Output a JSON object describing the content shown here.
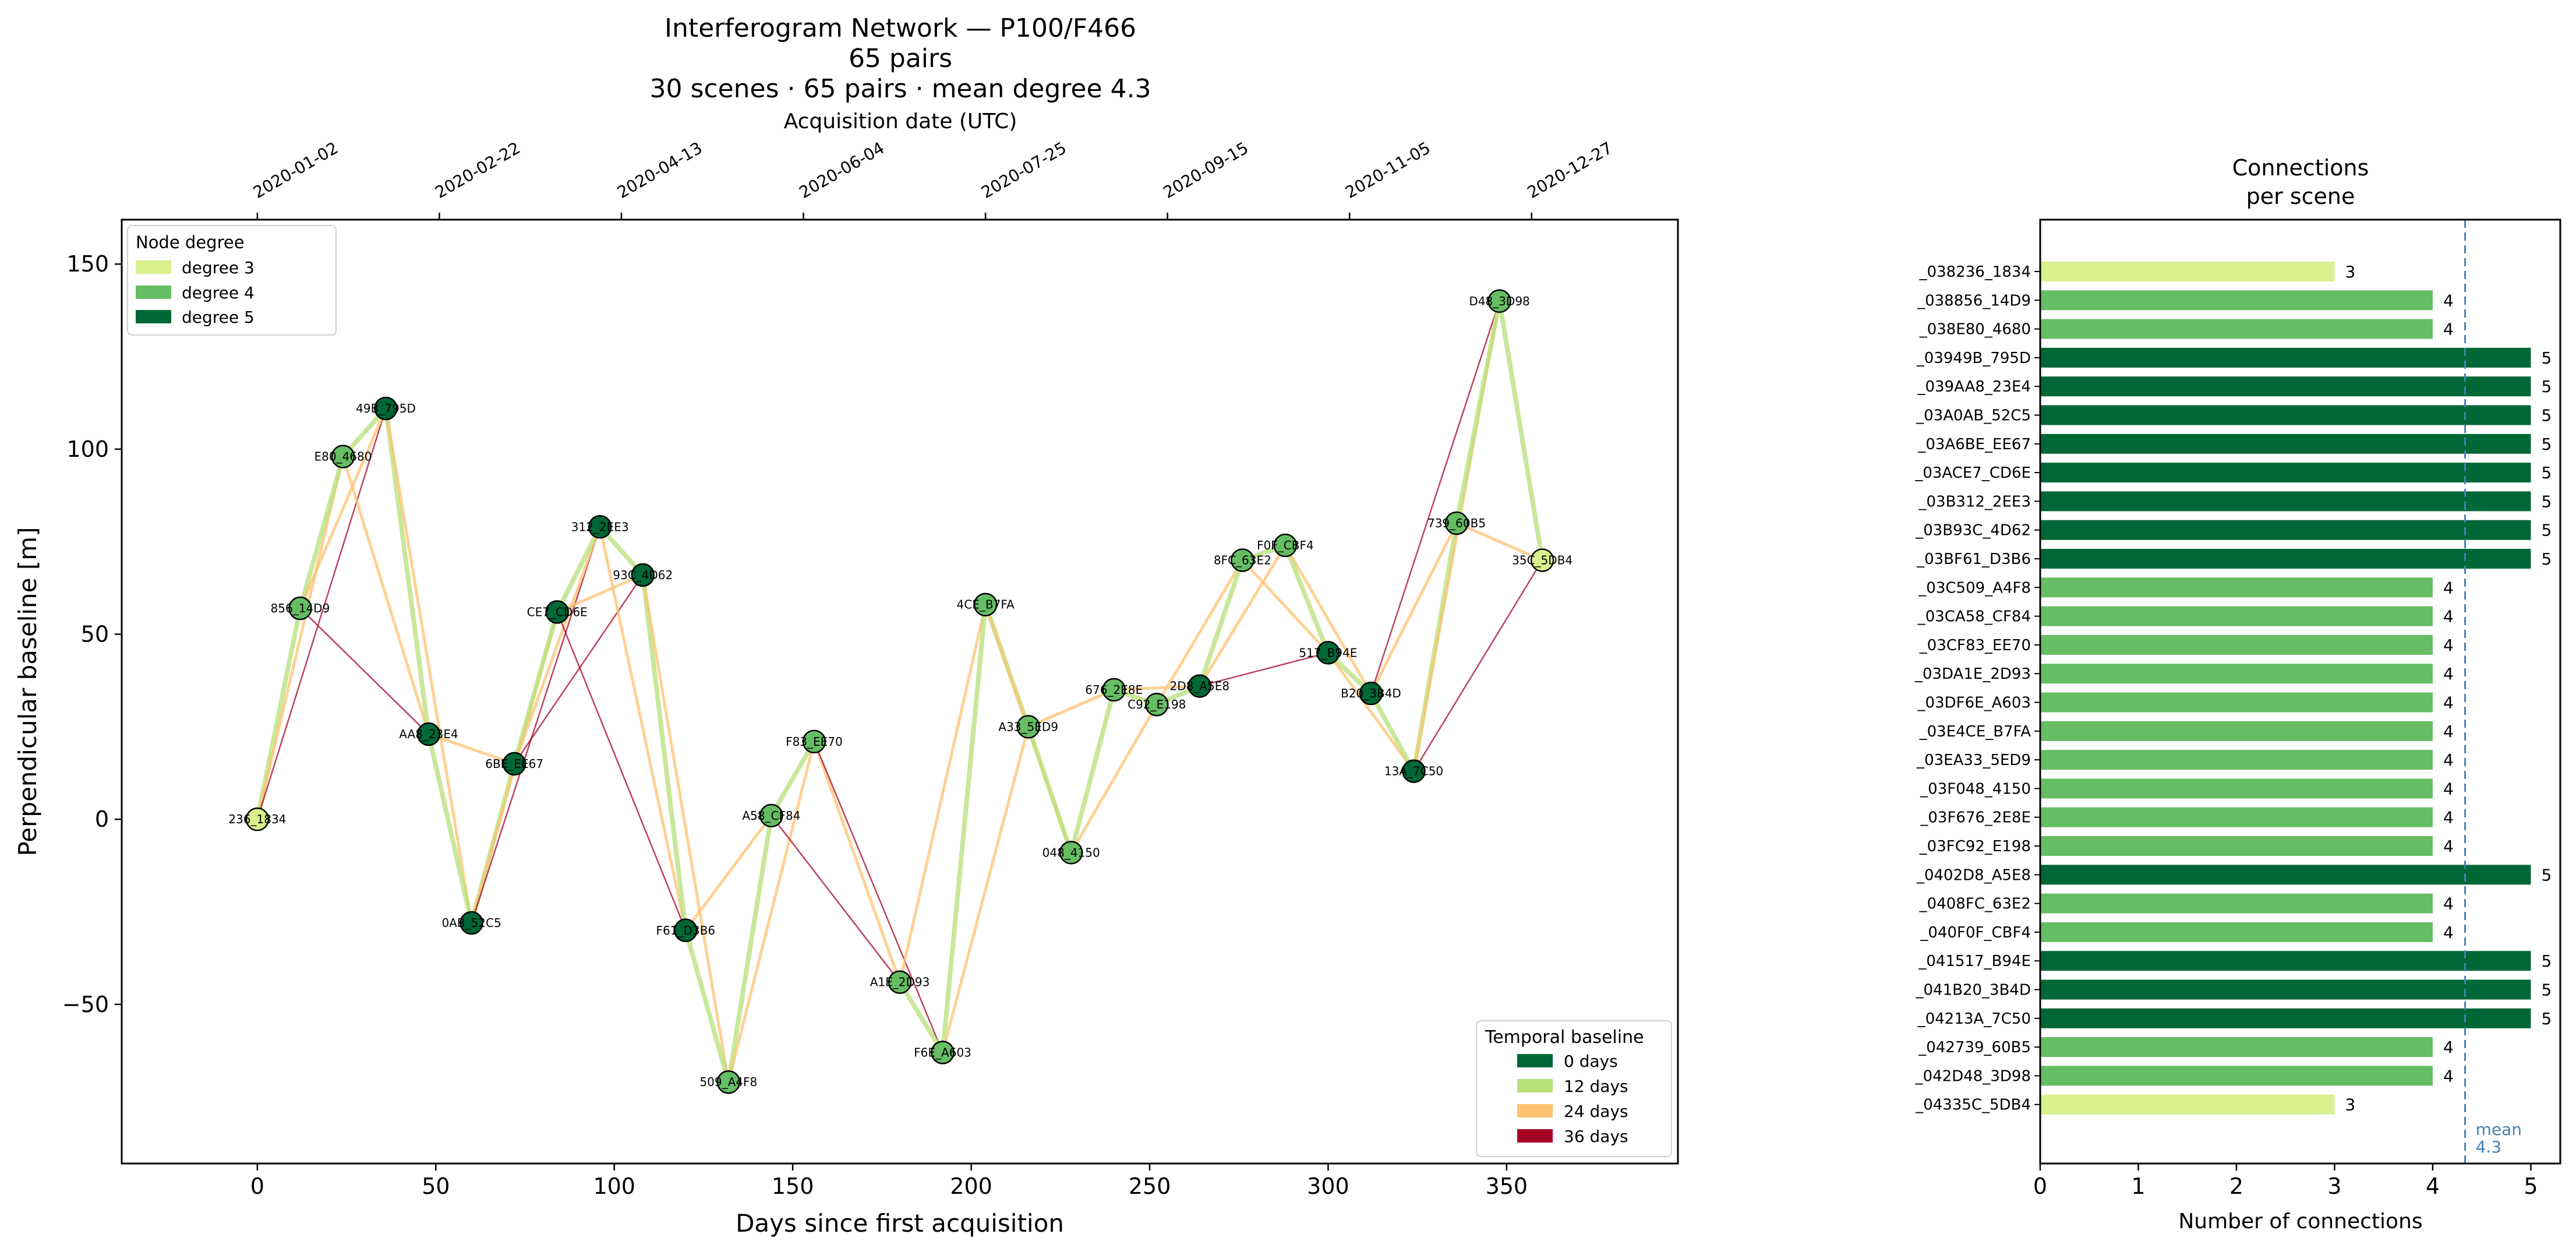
{
  "figure": {
    "title_lines": [
      "Interferogram Network — P100/F466",
      "65 pairs",
      "30 scenes · 65 pairs · mean degree 4.3"
    ]
  },
  "chart_data": [
    {
      "type": "scatter",
      "title": "Interferogram Network — P100/F466",
      "xlabel": "Days since first acquisition",
      "ylabel": "Perpendicular baseline [m]",
      "top_axis_label": "Acquisition date (UTC)",
      "xlim": [
        -38,
        398
      ],
      "ylim": [
        -93,
        162
      ],
      "xticks": [
        0,
        50,
        100,
        150,
        200,
        250,
        300,
        350
      ],
      "xtick_labels": [
        "0",
        "50",
        "100",
        "150",
        "200",
        "250",
        "300",
        "350"
      ],
      "yticks": [
        -50,
        0,
        50,
        100,
        150
      ],
      "ytick_labels": [
        "−50",
        "0",
        "50",
        "100",
        "150"
      ],
      "top_ticks": [
        0,
        51,
        102,
        153,
        204,
        255,
        306,
        357
      ],
      "top_tick_labels": [
        "2020-01-02",
        "2020-02-22",
        "2020-04-13",
        "2020-06-04",
        "2020-07-25",
        "2020-09-15",
        "2020-11-05",
        "2020-12-27"
      ],
      "node_legend": {
        "title": "Node degree",
        "items": [
          {
            "label": "degree 3",
            "color": "#d9f08d"
          },
          {
            "label": "degree 4",
            "color": "#66bd63"
          },
          {
            "label": "degree 5",
            "color": "#006837"
          }
        ]
      },
      "edge_legend": {
        "title": "Temporal baseline",
        "items": [
          {
            "label": "0 days",
            "color": "#006837"
          },
          {
            "label": "12 days",
            "color": "#b5e07a"
          },
          {
            "label": "24 days",
            "color": "#fdc170"
          },
          {
            "label": "36 days",
            "color": "#a50026"
          }
        ]
      },
      "nodes": [
        {
          "label": "236_1834",
          "x": 0,
          "y": 0,
          "degree": 3
        },
        {
          "label": "856_14D9",
          "x": 12,
          "y": 57,
          "degree": 4
        },
        {
          "label": "E80_4680",
          "x": 24,
          "y": 98,
          "degree": 4
        },
        {
          "label": "49B_795D",
          "x": 36,
          "y": 111,
          "degree": 5
        },
        {
          "label": "AA8_23E4",
          "x": 48,
          "y": 23,
          "degree": 5
        },
        {
          "label": "0AB_52C5",
          "x": 60,
          "y": -28,
          "degree": 5
        },
        {
          "label": "6BE_EE67",
          "x": 72,
          "y": 15,
          "degree": 5
        },
        {
          "label": "CE7_CD6E",
          "x": 84,
          "y": 56,
          "degree": 5
        },
        {
          "label": "312_2EE3",
          "x": 96,
          "y": 79,
          "degree": 5
        },
        {
          "label": "93C_4D62",
          "x": 108,
          "y": 66,
          "degree": 5
        },
        {
          "label": "F61_D3B6",
          "x": 120,
          "y": -30,
          "degree": 5
        },
        {
          "label": "509_A4F8",
          "x": 132,
          "y": -71,
          "degree": 4
        },
        {
          "label": "A58_CF84",
          "x": 144,
          "y": 1,
          "degree": 4
        },
        {
          "label": "F83_EE70",
          "x": 156,
          "y": 21,
          "degree": 4
        },
        {
          "label": "A1E_2D93",
          "x": 180,
          "y": -44,
          "degree": 4
        },
        {
          "label": "F6E_A603",
          "x": 192,
          "y": -63,
          "degree": 4
        },
        {
          "label": "4CE_B7FA",
          "x": 204,
          "y": 58,
          "degree": 4
        },
        {
          "label": "A33_5ED9",
          "x": 216,
          "y": 25,
          "degree": 4
        },
        {
          "label": "048_4150",
          "x": 228,
          "y": -9,
          "degree": 4
        },
        {
          "label": "676_2E8E",
          "x": 240,
          "y": 35,
          "degree": 4
        },
        {
          "label": "C92_E198",
          "x": 252,
          "y": 31,
          "degree": 4
        },
        {
          "label": "2D8_A5E8",
          "x": 264,
          "y": 36,
          "degree": 5
        },
        {
          "label": "8FC_63E2",
          "x": 276,
          "y": 70,
          "degree": 4
        },
        {
          "label": "F0F_CBF4",
          "x": 288,
          "y": 74,
          "degree": 4
        },
        {
          "label": "517_B94E",
          "x": 300,
          "y": 45,
          "degree": 5
        },
        {
          "label": "B20_3B4D",
          "x": 312,
          "y": 34,
          "degree": 5
        },
        {
          "label": "13A_7C50",
          "x": 324,
          "y": 13,
          "degree": 5
        },
        {
          "label": "739_60B5",
          "x": 336,
          "y": 80,
          "degree": 4
        },
        {
          "label": "D48_3D98",
          "x": 348,
          "y": 140,
          "degree": 4
        },
        {
          "label": "35C_5DB4",
          "x": 360,
          "y": 70,
          "degree": 3
        }
      ],
      "edges": [
        [
          0,
          1,
          12
        ],
        [
          0,
          2,
          24
        ],
        [
          0,
          3,
          36
        ],
        [
          1,
          2,
          12
        ],
        [
          1,
          3,
          24
        ],
        [
          1,
          4,
          36
        ],
        [
          2,
          3,
          12
        ],
        [
          2,
          4,
          24
        ],
        [
          3,
          4,
          12
        ],
        [
          3,
          5,
          24
        ],
        [
          4,
          5,
          12
        ],
        [
          4,
          6,
          24
        ],
        [
          5,
          6,
          12
        ],
        [
          5,
          7,
          24
        ],
        [
          5,
          8,
          36
        ],
        [
          6,
          7,
          12
        ],
        [
          6,
          8,
          24
        ],
        [
          6,
          9,
          36
        ],
        [
          7,
          8,
          12
        ],
        [
          7,
          9,
          24
        ],
        [
          7,
          10,
          36
        ],
        [
          8,
          9,
          12
        ],
        [
          8,
          10,
          24
        ],
        [
          9,
          10,
          12
        ],
        [
          9,
          11,
          24
        ],
        [
          10,
          11,
          12
        ],
        [
          10,
          12,
          24
        ],
        [
          11,
          12,
          12
        ],
        [
          11,
          13,
          24
        ],
        [
          12,
          13,
          12
        ],
        [
          12,
          14,
          36
        ],
        [
          13,
          14,
          24
        ],
        [
          13,
          15,
          36
        ],
        [
          14,
          15,
          12
        ],
        [
          14,
          16,
          24
        ],
        [
          15,
          16,
          12
        ],
        [
          15,
          17,
          24
        ],
        [
          16,
          17,
          12
        ],
        [
          16,
          18,
          24
        ],
        [
          17,
          18,
          12
        ],
        [
          17,
          19,
          24
        ],
        [
          18,
          19,
          12
        ],
        [
          18,
          20,
          24
        ],
        [
          19,
          20,
          12
        ],
        [
          19,
          21,
          24
        ],
        [
          20,
          21,
          12
        ],
        [
          20,
          22,
          24
        ],
        [
          21,
          22,
          12
        ],
        [
          21,
          23,
          24
        ],
        [
          21,
          24,
          36
        ],
        [
          22,
          23,
          12
        ],
        [
          22,
          24,
          24
        ],
        [
          23,
          24,
          12
        ],
        [
          23,
          25,
          24
        ],
        [
          24,
          25,
          12
        ],
        [
          24,
          26,
          24
        ],
        [
          25,
          26,
          12
        ],
        [
          25,
          27,
          24
        ],
        [
          25,
          28,
          36
        ],
        [
          26,
          27,
          12
        ],
        [
          26,
          28,
          24
        ],
        [
          26,
          29,
          36
        ],
        [
          27,
          28,
          12
        ],
        [
          27,
          29,
          24
        ],
        [
          28,
          29,
          12
        ]
      ]
    },
    {
      "type": "bar",
      "orientation": "horizontal",
      "title": "Connections per scene",
      "title_lines": [
        "Connections",
        "per scene"
      ],
      "xlabel": "Number of connections",
      "ylabel": "",
      "xlim": [
        0,
        5.3
      ],
      "xticks": [
        0,
        1,
        2,
        3,
        4,
        5
      ],
      "mean": 4.33,
      "mean_label_lines": [
        "mean",
        "4.3"
      ],
      "categories": [
        "_038236_1834",
        "_038856_14D9",
        "_038E80_4680",
        "_03949B_795D",
        "_039AA8_23E4",
        "_03A0AB_52C5",
        "_03A6BE_EE67",
        "_03ACE7_CD6E",
        "_03B312_2EE3",
        "_03B93C_4D62",
        "_03BF61_D3B6",
        "_03C509_A4F8",
        "_03CA58_CF84",
        "_03CF83_EE70",
        "_03DA1E_2D93",
        "_03DF6E_A603",
        "_03E4CE_B7FA",
        "_03EA33_5ED9",
        "_03F048_4150",
        "_03F676_2E8E",
        "_03FC92_E198",
        "_0402D8_A5E8",
        "_0408FC_63E2",
        "_040F0F_CBF4",
        "_041517_B94E",
        "_041B20_3B4D",
        "_04213A_7C50",
        "_042739_60B5",
        "_042D48_3D98",
        "_04335C_5DB4"
      ],
      "values": [
        3,
        4,
        4,
        5,
        5,
        5,
        5,
        5,
        5,
        5,
        5,
        4,
        4,
        4,
        4,
        4,
        4,
        4,
        4,
        4,
        4,
        5,
        4,
        4,
        5,
        5,
        5,
        4,
        4,
        3
      ]
    }
  ]
}
